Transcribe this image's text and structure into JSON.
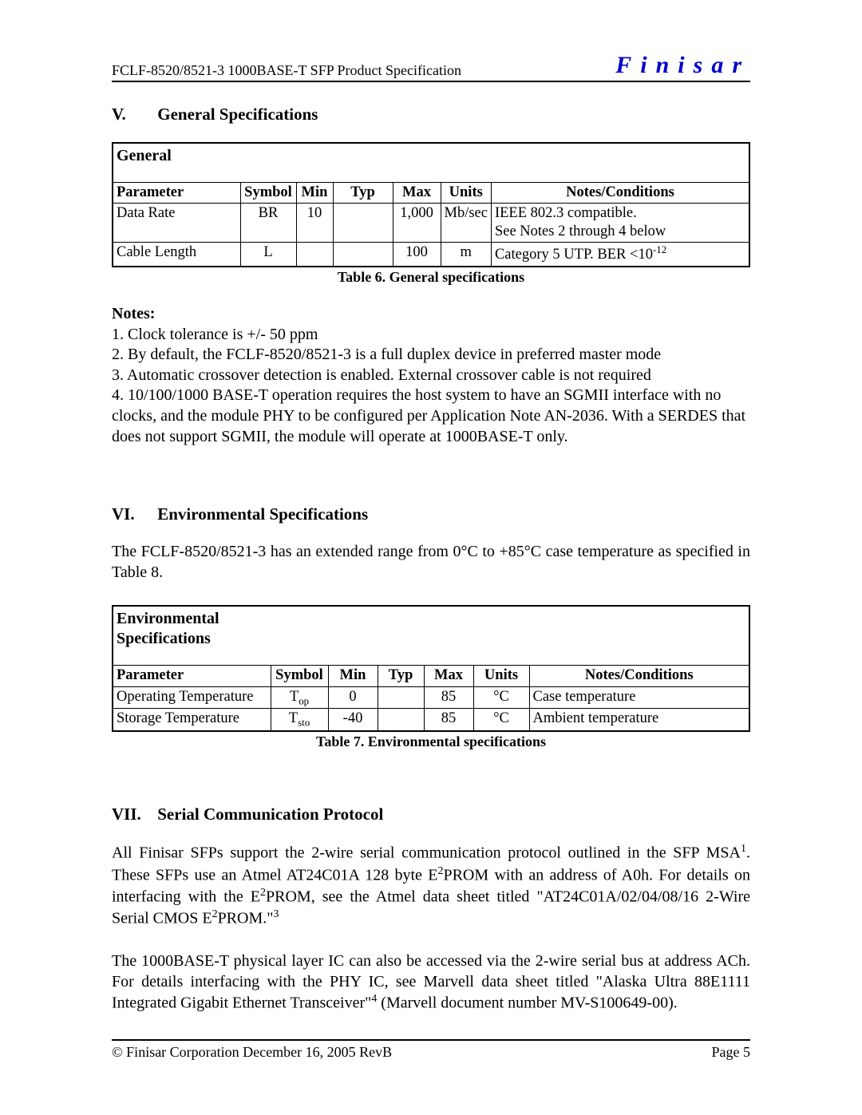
{
  "header": {
    "left": "FCLF-8520/8521-3 1000BASE-T SFP Product Specification",
    "brand": "Finisar"
  },
  "sections": {
    "s5": {
      "roman": "V.",
      "title": "General Specifications"
    },
    "s6": {
      "roman": "VI.",
      "title": "Environmental Specifications"
    },
    "s7": {
      "roman": "VII.",
      "title": "Serial Communication Protocol"
    }
  },
  "table_general": {
    "title": "General",
    "caption": "Table 6. General specifications",
    "head": [
      "Parameter",
      "Symbol",
      "Min",
      "Typ",
      "Max",
      "Units",
      "Notes/Conditions"
    ],
    "rows": [
      {
        "parameter": "Data Rate",
        "symbol": "BR",
        "min": "10",
        "typ": "",
        "max": "1,000",
        "units": "Mb/sec",
        "notes": "IEEE 802.3 compatible.\nSee Notes 2 through 4 below"
      },
      {
        "parameter": "Cable Length",
        "symbol": "L",
        "min": "",
        "typ": "",
        "max": "100",
        "units": "m",
        "notes": "Category 5 UTP.  BER <10",
        "notes_sup": "-12"
      }
    ],
    "col_widths": [
      "160px",
      "70px",
      "46px",
      "75px",
      "60px",
      "60px",
      "auto"
    ]
  },
  "notes": {
    "heading": "Notes:",
    "lines": [
      "1. Clock tolerance is +/- 50 ppm",
      "2. By default, the FCLF-8520/8521-3 is a full duplex device in preferred master mode",
      "3. Automatic crossover detection is enabled.  External crossover cable is not required",
      "4. 10/100/1000 BASE-T operation requires the host system to have an SGMII interface with no clocks, and the module PHY to be configured per Application Note AN-2036. With a SERDES that does not support SGMII, the module will operate at 1000BASE-T only."
    ]
  },
  "env_intro": "The FCLF-8520/8521-3 has an extended range from 0°C to +85°C case temperature as specified in Table 8.",
  "table_env": {
    "title": "Environmental Specifications",
    "caption": "Table 7. Environmental specifications",
    "head": [
      "Parameter",
      "Symbol",
      "Min",
      "Typ",
      "Max",
      "Units",
      "Notes/Conditions"
    ],
    "rows": [
      {
        "parameter": "Operating Temperature",
        "symbol": "T",
        "symbol_sub": "op",
        "min": "0",
        "typ": "",
        "max": "85",
        "units": "°C",
        "notes": "Case temperature"
      },
      {
        "parameter": "Storage Temperature",
        "symbol": "T",
        "symbol_sub": "sto",
        "min": "-40",
        "typ": "",
        "max": "85",
        "units": "°C",
        "notes": "Ambient temperature"
      }
    ],
    "col_widths": [
      "198px",
      "72px",
      "62px",
      "58px",
      "62px",
      "70px",
      "auto"
    ]
  },
  "serial_p1": {
    "pieces": [
      {
        "t": "All Finisar SFPs support the 2-wire serial communication protocol outlined in the SFP MSA"
      },
      {
        "sup": "1"
      },
      {
        "t": ". These SFPs use an Atmel AT24C01A 128 byte E"
      },
      {
        "sup": "2"
      },
      {
        "t": "PROM with an address of A0h. For details on interfacing with the E"
      },
      {
        "sup": "2"
      },
      {
        "t": "PROM, see the Atmel data sheet titled \"AT24C01A/02/04/08/16 2-Wire Serial CMOS E"
      },
      {
        "sup": "2"
      },
      {
        "t": "PROM.\""
      },
      {
        "sup": "3"
      }
    ]
  },
  "serial_p2": {
    "pieces": [
      {
        "t": "The 1000BASE-T physical layer IC can also be accessed via the 2-wire serial bus at address ACh. For details interfacing with the PHY IC, see Marvell data sheet titled \"Alaska Ultra 88E1111 Integrated Gigabit Ethernet Transceiver\""
      },
      {
        "sup": "4"
      },
      {
        "t": " (Marvell document number MV-S100649-00)."
      }
    ]
  },
  "footer": {
    "left": "© Finisar Corporation December 16, 2005 RevB",
    "right": "Page 5"
  }
}
